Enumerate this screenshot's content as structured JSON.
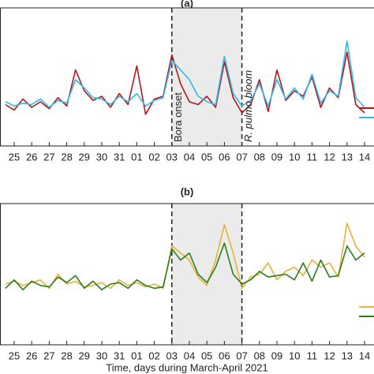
{
  "chart_data": [
    {
      "type": "line",
      "title": "(a)",
      "x": [
        0.5,
        1,
        1.5,
        2,
        2.5,
        3,
        3.5,
        4,
        4.5,
        5,
        5.5,
        6,
        6.5,
        7,
        7.5,
        8,
        8.5,
        9,
        9.5,
        10,
        10.5,
        11,
        11.5,
        12,
        12.5,
        13,
        13.5,
        14,
        14.5,
        15,
        15.5,
        16,
        16.5,
        17,
        17.5,
        18,
        18.5,
        19,
        19.5,
        20,
        20.5,
        21
      ],
      "series": [
        {
          "color": "#b5161e",
          "values": [
            3.0,
            2.6,
            3.4,
            2.8,
            3.2,
            2.7,
            3.5,
            2.9,
            5.5,
            4.0,
            3.3,
            3.6,
            2.8,
            3.8,
            3.0,
            5.8,
            2.3,
            3.4,
            3.6,
            6.6,
            4.5,
            3.2,
            3.0,
            3.6,
            2.8,
            6.1,
            3.5,
            2.4,
            3.0,
            4.8,
            2.5,
            5.5,
            3.3,
            4.0,
            3.6,
            5.0,
            2.8,
            4.2,
            3.5,
            6.8,
            3.0,
            2.4
          ]
        },
        {
          "color": "#2ebbe8",
          "values": [
            3.2,
            2.9,
            3.1,
            3.0,
            3.4,
            2.8,
            3.3,
            3.1,
            4.8,
            4.2,
            3.5,
            3.4,
            3.0,
            3.6,
            3.2,
            3.8,
            2.9,
            3.3,
            3.5,
            6.2,
            5.5,
            4.8,
            3.6,
            3.2,
            3.0,
            6.5,
            3.8,
            2.9,
            3.3,
            4.5,
            2.9,
            4.8,
            3.4,
            4.2,
            3.4,
            5.2,
            3.1,
            4.0,
            3.6,
            7.6,
            3.5,
            2.8
          ]
        }
      ],
      "xlim": [
        0.19,
        21.54
      ],
      "ylim": [
        0,
        10
      ],
      "xticks": [
        {
          "value": 1,
          "label": "25"
        },
        {
          "value": 2,
          "label": "26"
        },
        {
          "value": 3,
          "label": "27"
        },
        {
          "value": 4,
          "label": "28"
        },
        {
          "value": 5,
          "label": "29"
        },
        {
          "value": 6,
          "label": "30"
        },
        {
          "value": 7,
          "label": "31"
        },
        {
          "value": 8,
          "label": "01"
        },
        {
          "value": 9,
          "label": "02"
        },
        {
          "value": 10,
          "label": "03"
        },
        {
          "value": 11,
          "label": "04"
        },
        {
          "value": 12,
          "label": "05"
        },
        {
          "value": 13,
          "label": "06"
        },
        {
          "value": 14,
          "label": "07"
        },
        {
          "value": 15,
          "label": "08"
        },
        {
          "value": 16,
          "label": "09"
        },
        {
          "value": 17,
          "label": "10"
        },
        {
          "value": 18,
          "label": "11"
        },
        {
          "value": 19,
          "label": "12"
        },
        {
          "value": 20,
          "label": "13"
        },
        {
          "value": 21,
          "label": "14"
        }
      ],
      "shaded_span": [
        10,
        14
      ],
      "annotations": [
        {
          "text": "Bora onset",
          "x": 10
        },
        {
          "text": "R. pulmo bloom",
          "x": 14
        }
      ]
    },
    {
      "type": "line",
      "title": "(b)",
      "x": [
        0.5,
        1,
        1.5,
        2,
        2.5,
        3,
        3.5,
        4,
        4.5,
        5,
        5.5,
        6,
        6.5,
        7,
        7.5,
        8,
        8.5,
        9,
        9.5,
        10,
        10.5,
        11,
        11.5,
        12,
        12.5,
        13,
        13.5,
        14,
        14.5,
        15,
        15.5,
        16,
        16.5,
        17,
        17.5,
        18,
        18.5,
        19,
        19.5,
        20,
        20.5,
        21
      ],
      "series": [
        {
          "color": "#e6b23a",
          "values": [
            4.3,
            4.5,
            4.2,
            4.4,
            4.6,
            4.0,
            5.0,
            4.3,
            4.5,
            4.1,
            4.2,
            4.4,
            4.0,
            4.6,
            4.2,
            4.4,
            4.1,
            4.3,
            4.0,
            7.0,
            6.5,
            6.0,
            4.8,
            4.2,
            6.0,
            8.5,
            6.5,
            4.0,
            4.8,
            5.0,
            5.8,
            4.6,
            5.2,
            5.5,
            4.9,
            6.0,
            5.5,
            5.8,
            4.8,
            8.6,
            7.0,
            6.2
          ]
        },
        {
          "color": "#2e7d1c",
          "values": [
            4.0,
            4.6,
            3.9,
            4.5,
            4.2,
            4.1,
            4.8,
            4.4,
            4.9,
            4.0,
            4.5,
            3.9,
            4.3,
            4.4,
            4.0,
            4.6,
            4.2,
            4.0,
            4.1,
            6.8,
            6.0,
            6.5,
            5.0,
            4.4,
            5.5,
            7.2,
            5.0,
            4.3,
            4.6,
            5.2,
            4.8,
            4.9,
            5.0,
            4.6,
            5.8,
            4.5,
            6.0,
            4.8,
            4.9,
            7.0,
            6.0,
            6.5
          ]
        }
      ],
      "xlim": [
        0.19,
        21.54
      ],
      "ylim": [
        0,
        10
      ],
      "xticks": [
        {
          "value": 1,
          "label": "25"
        },
        {
          "value": 2,
          "label": "26"
        },
        {
          "value": 3,
          "label": "27"
        },
        {
          "value": 4,
          "label": "28"
        },
        {
          "value": 5,
          "label": "29"
        },
        {
          "value": 6,
          "label": "30"
        },
        {
          "value": 7,
          "label": "31"
        },
        {
          "value": 8,
          "label": "01"
        },
        {
          "value": 9,
          "label": "02"
        },
        {
          "value": 10,
          "label": "03"
        },
        {
          "value": 11,
          "label": "04"
        },
        {
          "value": 12,
          "label": "05"
        },
        {
          "value": 13,
          "label": "06"
        },
        {
          "value": 14,
          "label": "07"
        },
        {
          "value": 15,
          "label": "08"
        },
        {
          "value": 16,
          "label": "09"
        },
        {
          "value": 17,
          "label": "10"
        },
        {
          "value": 18,
          "label": "11"
        },
        {
          "value": 19,
          "label": "12"
        },
        {
          "value": 20,
          "label": "13"
        },
        {
          "value": 21,
          "label": "14"
        }
      ],
      "shaded_span": [
        10,
        14
      ],
      "xlabel": "Time, days during March-April 2021"
    }
  ]
}
